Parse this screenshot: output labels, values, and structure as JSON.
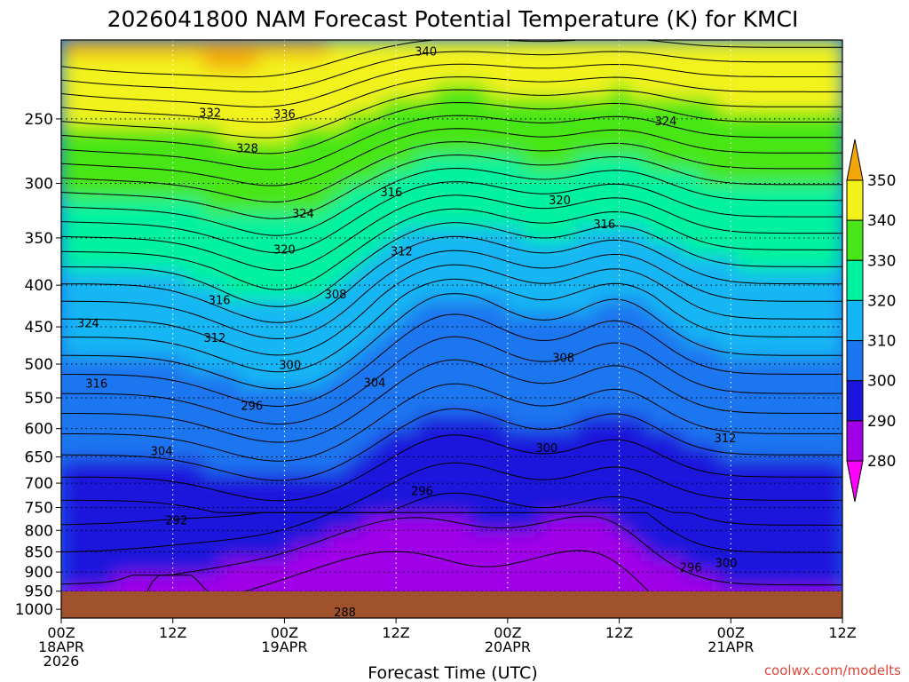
{
  "chart_data": {
    "type": "heatmap",
    "title": "2026041800 NAM Forecast Potential Temperature (K) for KMCI",
    "xlabel": "Forecast Time (UTC)",
    "ylabel": "",
    "x_ticks": [
      {
        "hour": 0,
        "lines": [
          "00Z",
          "18APR",
          "2026"
        ]
      },
      {
        "hour": 12,
        "lines": [
          "12Z"
        ]
      },
      {
        "hour": 24,
        "lines": [
          "00Z",
          "19APR"
        ]
      },
      {
        "hour": 36,
        "lines": [
          "12Z"
        ]
      },
      {
        "hour": 48,
        "lines": [
          "00Z",
          "20APR"
        ]
      },
      {
        "hour": 60,
        "lines": [
          "12Z"
        ]
      },
      {
        "hour": 72,
        "lines": [
          "00Z",
          "21APR"
        ]
      },
      {
        "hour": 84,
        "lines": [
          "12Z"
        ]
      }
    ],
    "xlim": [
      0,
      84
    ],
    "y_ticks": [
      250,
      300,
      350,
      400,
      450,
      500,
      550,
      600,
      650,
      700,
      750,
      800,
      850,
      900,
      950,
      1000
    ],
    "ylim_hpa": [
      200,
      1025
    ],
    "y_scale": "log-pressure",
    "grid": true,
    "colorbar": {
      "ticks": [
        280,
        290,
        300,
        310,
        320,
        330,
        340,
        350
      ],
      "bins": [
        {
          "from": 270,
          "to": 280,
          "color": "#ff00ff"
        },
        {
          "from": 280,
          "to": 290,
          "color": "#a000e8"
        },
        {
          "from": 290,
          "to": 300,
          "color": "#1a16dc"
        },
        {
          "from": 300,
          "to": 310,
          "color": "#1a76f0"
        },
        {
          "from": 310,
          "to": 320,
          "color": "#12b6f4"
        },
        {
          "from": 320,
          "to": 330,
          "color": "#00f2a0"
        },
        {
          "from": 330,
          "to": 340,
          "color": "#48e618"
        },
        {
          "from": 340,
          "to": 350,
          "color": "#f2f21a"
        },
        {
          "from": 350,
          "to": 360,
          "color": "#f2a60a"
        }
      ]
    },
    "isotherm_interval_k": 2,
    "contour_labels": [
      {
        "value": "340",
        "hour": 39.2,
        "hpa": 207
      },
      {
        "value": "332",
        "hour": 16,
        "hpa": 246
      },
      {
        "value": "336",
        "hour": 24,
        "hpa": 247
      },
      {
        "value": "324",
        "hour": 65,
        "hpa": 252
      },
      {
        "value": "328",
        "hour": 20,
        "hpa": 272
      },
      {
        "value": "316",
        "hour": 35.5,
        "hpa": 308
      },
      {
        "value": "320",
        "hour": 53.6,
        "hpa": 315
      },
      {
        "value": "324",
        "hour": 26,
        "hpa": 327
      },
      {
        "value": "316",
        "hour": 58.4,
        "hpa": 337
      },
      {
        "value": "320",
        "hour": 24,
        "hpa": 362
      },
      {
        "value": "312",
        "hour": 36.6,
        "hpa": 364
      },
      {
        "value": "316",
        "hour": 17,
        "hpa": 418
      },
      {
        "value": "308",
        "hour": 29.5,
        "hpa": 411
      },
      {
        "value": "324",
        "hour": 2.9,
        "hpa": 446
      },
      {
        "value": "312",
        "hour": 16.5,
        "hpa": 465
      },
      {
        "value": "308",
        "hour": 54,
        "hpa": 492
      },
      {
        "value": "300",
        "hour": 24.6,
        "hpa": 502
      },
      {
        "value": "316",
        "hour": 3.8,
        "hpa": 529
      },
      {
        "value": "304",
        "hour": 33.7,
        "hpa": 528
      },
      {
        "value": "296",
        "hour": 20.5,
        "hpa": 563
      },
      {
        "value": "312",
        "hour": 71.4,
        "hpa": 617
      },
      {
        "value": "300",
        "hour": 52.2,
        "hpa": 635
      },
      {
        "value": "304",
        "hour": 10.8,
        "hpa": 640
      },
      {
        "value": "296",
        "hour": 38.8,
        "hpa": 717
      },
      {
        "value": "292",
        "hour": 12.4,
        "hpa": 779
      },
      {
        "value": "300",
        "hour": 71.5,
        "hpa": 878
      },
      {
        "value": "296",
        "hour": 67.7,
        "hpa": 890
      },
      {
        "value": "288",
        "hour": 30.5,
        "hpa": 1010
      }
    ],
    "surface_color": "#a0522d"
  },
  "credit": "coolwx.com/modelts"
}
